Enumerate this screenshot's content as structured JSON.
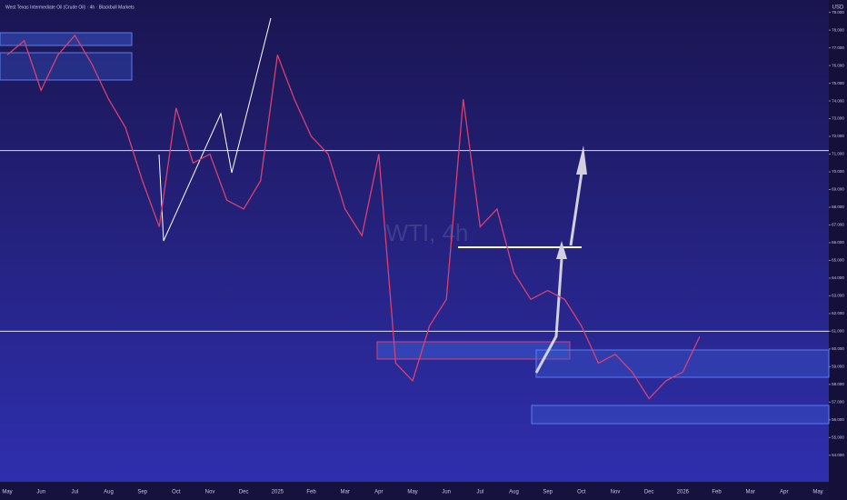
{
  "chart_data": {
    "type": "line",
    "title": "West Texas Intermediate Oil (Crude Oil) · 4h · Blackbull Markets",
    "watermark": "WTI, 4h",
    "categories": [
      "May",
      null,
      "Jun",
      null,
      "Jul",
      null,
      "Aug",
      null,
      "Sep",
      null,
      "Oct",
      null,
      "Nov",
      null,
      "Dec",
      null,
      "2025",
      null,
      "Feb",
      null,
      "Mar",
      null,
      "Apr",
      null,
      "May",
      null,
      "Jun",
      null,
      "Jul",
      null,
      "Aug",
      null,
      "Sep",
      null,
      "Oct",
      null,
      "Nov",
      null,
      "Dec",
      null,
      "2026",
      null,
      "Feb",
      null,
      "Mar",
      null,
      "Apr",
      null,
      "May"
    ],
    "series": [
      {
        "name": "WTI",
        "color": "#d9416e",
        "values": [
          76.6,
          77.4,
          74.6,
          76.6,
          77.7,
          76.1,
          74.1,
          72.5,
          69.5,
          66.9,
          73.6,
          70.5,
          71.0,
          68.4,
          67.9,
          69.5,
          76.6,
          74.1,
          72.0,
          71.0,
          67.9,
          66.4,
          71.0,
          59.2,
          58.2,
          61.3,
          62.8,
          74.1,
          66.9,
          67.9,
          64.3,
          62.8,
          63.3,
          62.8,
          61.3,
          59.2,
          59.7,
          58.7,
          57.2,
          58.2,
          58.7,
          60.7,
          null,
          null,
          null,
          null,
          null,
          null,
          null
        ]
      }
    ],
    "hlines": [
      71.2,
      61.0
    ],
    "ylim": [
      52.5,
      79.7
    ],
    "yticks": [
      {
        "value": 54,
        "label": "54.000"
      },
      {
        "value": 55,
        "label": "55.000"
      },
      {
        "value": 56,
        "label": "56.000"
      },
      {
        "value": 57,
        "label": "57.000"
      },
      {
        "value": 58,
        "label": "58.000"
      },
      {
        "value": 59,
        "label": "59.000"
      },
      {
        "value": 60,
        "label": "60.000"
      },
      {
        "value": 61,
        "label": "61.000"
      },
      {
        "value": 62,
        "label": "62.000"
      },
      {
        "value": 63,
        "label": "63.000"
      },
      {
        "value": 64,
        "label": "64.000"
      },
      {
        "value": 65,
        "label": "65.000"
      },
      {
        "value": 66,
        "label": "66.000"
      },
      {
        "value": 67,
        "label": "67.000"
      },
      {
        "value": 68,
        "label": "68.000"
      },
      {
        "value": 69,
        "label": "69.000"
      },
      {
        "value": 70,
        "label": "70.000"
      },
      {
        "value": 71,
        "label": "71.000"
      },
      {
        "value": 72,
        "label": "72.000"
      },
      {
        "value": 73,
        "label": "73.000"
      },
      {
        "value": 74,
        "label": "74.000"
      },
      {
        "value": 75,
        "label": "75.000"
      },
      {
        "value": 76,
        "label": "76.000"
      },
      {
        "value": 77,
        "label": "77.000"
      },
      {
        "value": 78,
        "label": "78.000"
      },
      {
        "value": 79,
        "label": "79.000"
      }
    ],
    "y_axis_label": "USD"
  }
}
